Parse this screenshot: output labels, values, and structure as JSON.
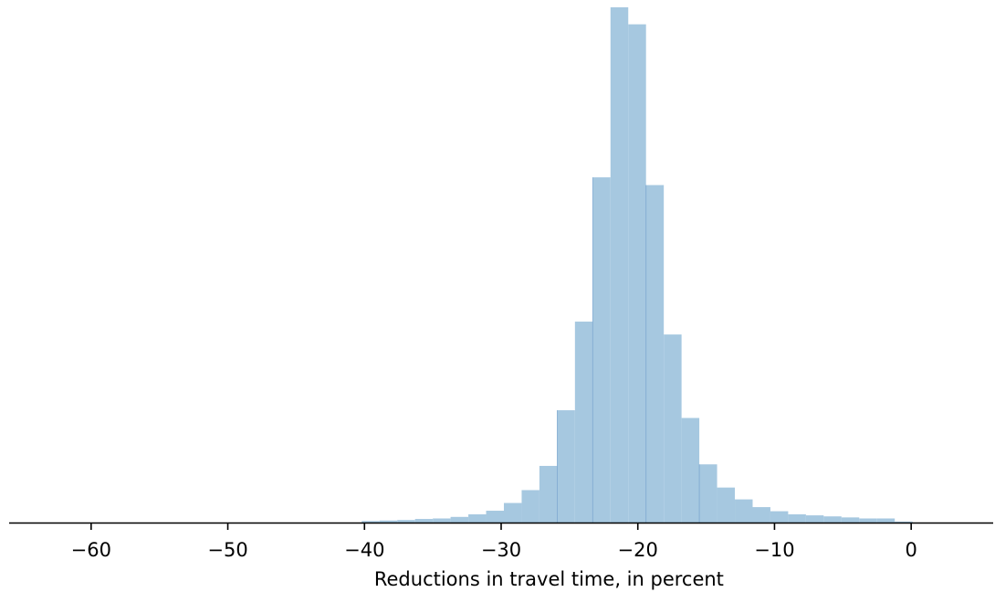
{
  "chart_data": {
    "type": "bar",
    "subtype": "histogram",
    "title": "",
    "xlabel": "Reductions in travel time, in percent",
    "ylabel": "",
    "xlim": [
      -66,
      6
    ],
    "ylim": [
      0,
      1.0
    ],
    "y_axis_visible": false,
    "grid": false,
    "legend": "none",
    "bar_color": "#a6c8e0",
    "edge_color": "#5b8fc4",
    "axis_color": "#000000",
    "x_ticks": [
      -60,
      -50,
      -40,
      -30,
      -20,
      -10,
      0
    ],
    "x_tick_labels": [
      "−60",
      "−50",
      "−40",
      "−30",
      "−20",
      "−10",
      "0"
    ],
    "bin_width": 1.3,
    "bins": [
      {
        "start": -40.2,
        "value": 0.003
      },
      {
        "start": -38.9,
        "value": 0.004
      },
      {
        "start": -37.6,
        "value": 0.005
      },
      {
        "start": -36.3,
        "value": 0.007
      },
      {
        "start": -35.0,
        "value": 0.008
      },
      {
        "start": -33.7,
        "value": 0.011
      },
      {
        "start": -32.4,
        "value": 0.016
      },
      {
        "start": -31.1,
        "value": 0.023
      },
      {
        "start": -29.8,
        "value": 0.038
      },
      {
        "start": -28.5,
        "value": 0.063
      },
      {
        "start": -27.2,
        "value": 0.11
      },
      {
        "start": -25.9,
        "value": 0.218
      },
      {
        "start": -24.6,
        "value": 0.39
      },
      {
        "start": -23.3,
        "value": 0.67
      },
      {
        "start": -22.0,
        "value": 1.0
      },
      {
        "start": -20.7,
        "value": 0.967
      },
      {
        "start": -19.4,
        "value": 0.655
      },
      {
        "start": -18.1,
        "value": 0.365
      },
      {
        "start": -16.8,
        "value": 0.203
      },
      {
        "start": -15.5,
        "value": 0.113
      },
      {
        "start": -14.2,
        "value": 0.068
      },
      {
        "start": -12.9,
        "value": 0.045
      },
      {
        "start": -11.6,
        "value": 0.03
      },
      {
        "start": -10.3,
        "value": 0.022
      },
      {
        "start": -9.0,
        "value": 0.016
      },
      {
        "start": -7.7,
        "value": 0.014
      },
      {
        "start": -6.4,
        "value": 0.012
      },
      {
        "start": -5.1,
        "value": 0.01
      },
      {
        "start": -3.8,
        "value": 0.008
      },
      {
        "start": -2.5,
        "value": 0.008
      },
      {
        "start": -1.2,
        "value": 0.002
      }
    ]
  }
}
